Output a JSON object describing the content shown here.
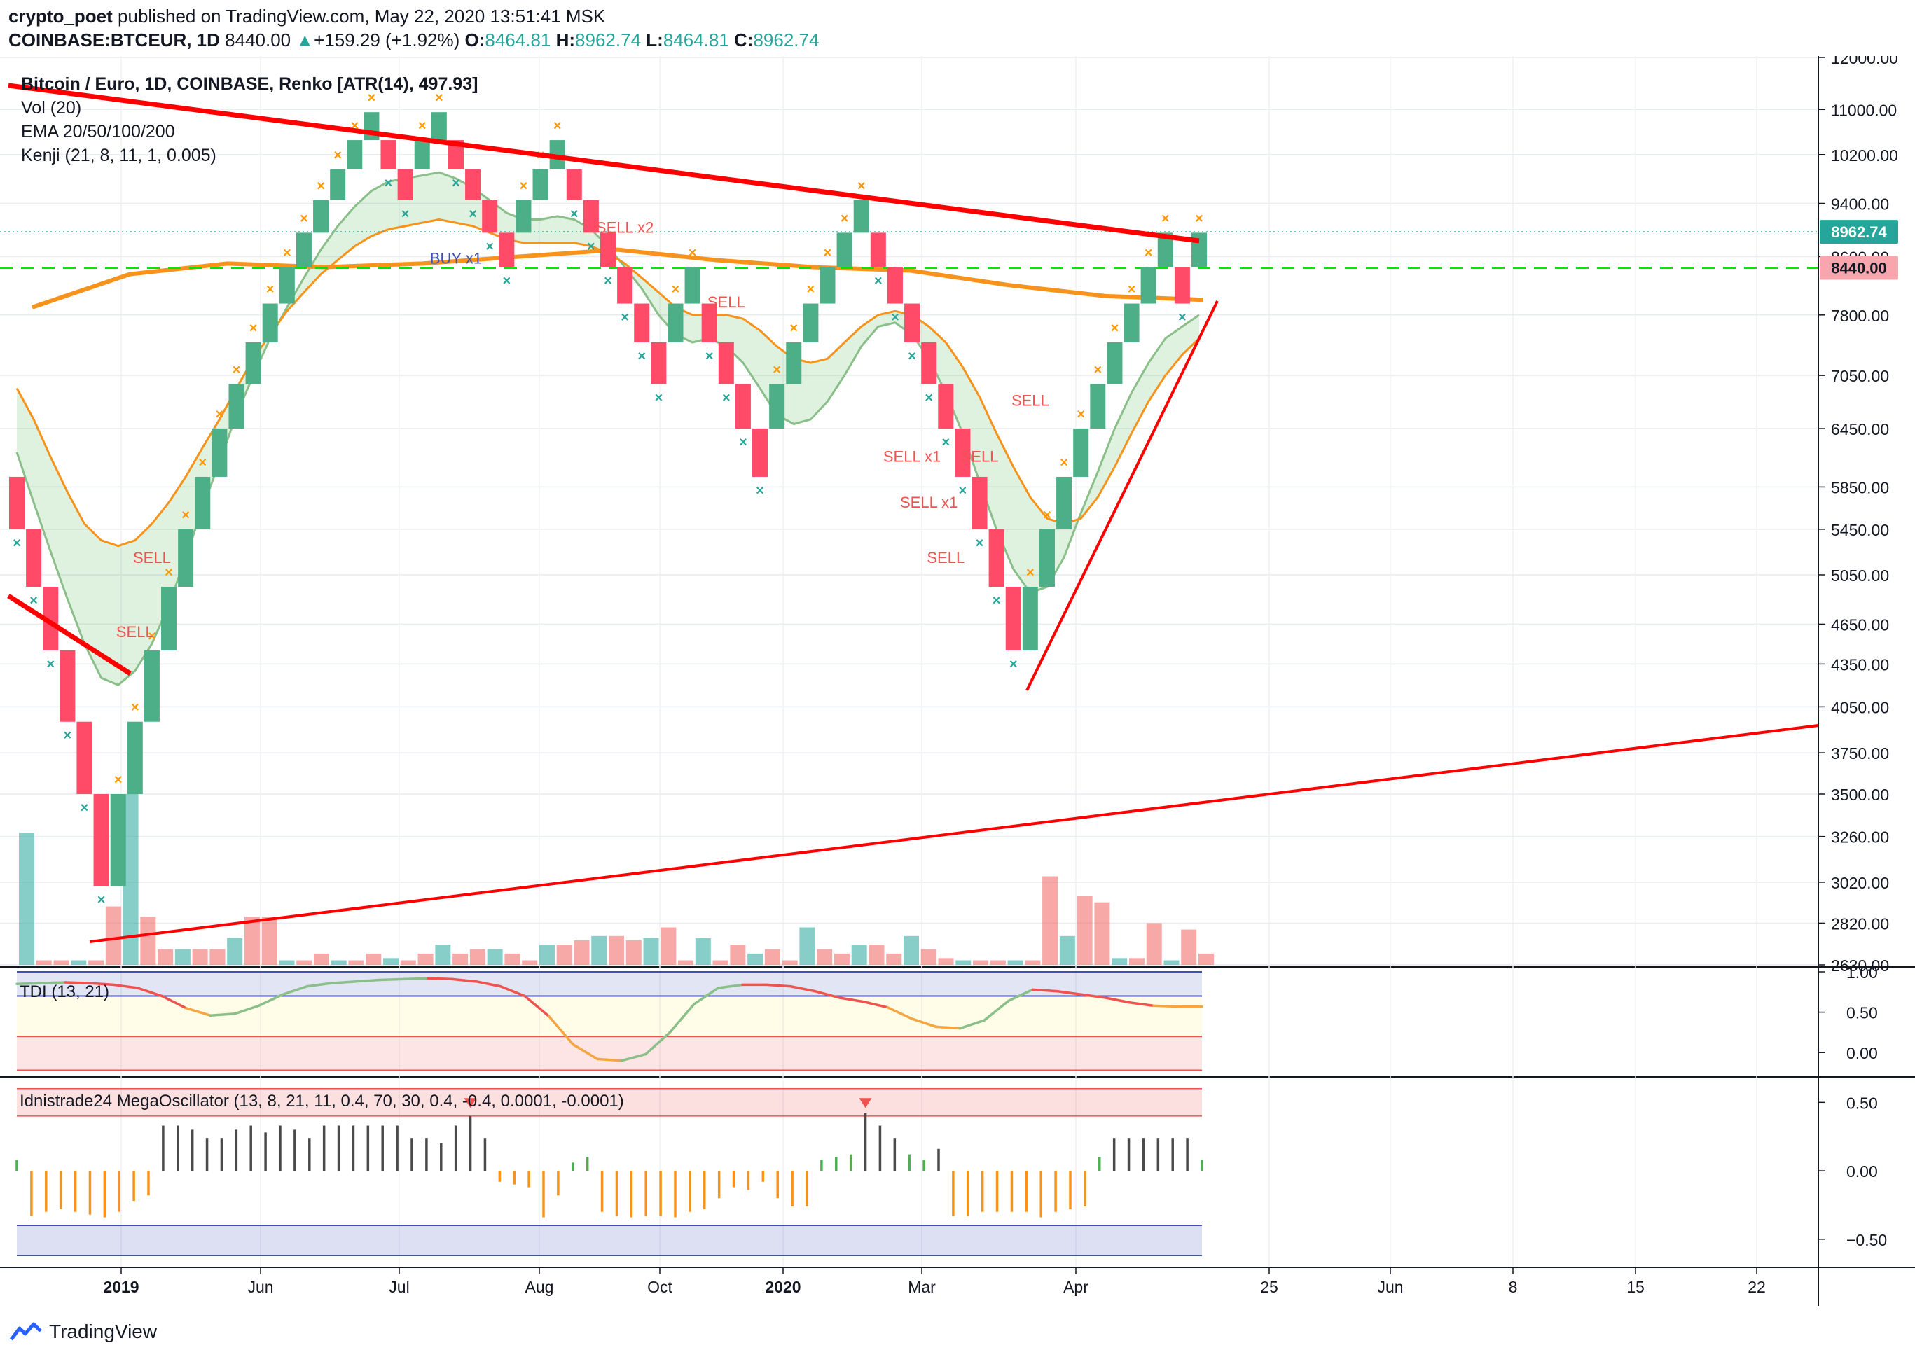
{
  "header": {
    "author": "crypto_poet",
    "published": "published on TradingView.com, May 22, 2020 13:51:41 MSK",
    "symbol": "COINBASE:BTCEUR, 1D",
    "last": "8440.00",
    "change": "+159.29 (+1.92%)",
    "o_label": "O:",
    "o_value": "8464.81",
    "h_label": "H:",
    "h_value": "8962.74",
    "l_label": "L:",
    "l_value": "8464.81",
    "c_label": "C:",
    "c_value": "8962.74"
  },
  "legend": {
    "line1": "Bitcoin / Euro, 1D, COINBASE, Renko [ATR(14), 497.93]",
    "line2": "Vol (20)",
    "line3": "EMA 20/50/100/200",
    "line4": "Kenji (21, 8, 11, 1, 0.005)"
  },
  "footer": {
    "brand": "TradingView"
  },
  "colors": {
    "up": "#26a69a",
    "up_fill": "#4caf87",
    "down": "#ef5350",
    "trend_red": "#ff0000",
    "ema_orange": "#f7931a",
    "level_green": "#00e600",
    "marker_up": "#ff9800",
    "marker_down": "#26a69a"
  },
  "chart_data": [
    {
      "type": "candlestick",
      "title": "Bitcoin / Euro, 1D, COINBASE, Renko [ATR(14), 497.93]",
      "y_scale": "log",
      "ylim": [
        2630,
        12000
      ],
      "y_ticks": [
        12000,
        11000,
        10200,
        9400,
        8600,
        7800,
        7050,
        6450,
        5850,
        5450,
        5050,
        4650,
        4350,
        4050,
        3750,
        3500,
        3260,
        3020,
        2820,
        2630
      ],
      "y_tick_labels": [
        "12000.00",
        "11000.00",
        "10200.00",
        "9400.00",
        "8600.00",
        "7800.00",
        "7050.00",
        "6450.00",
        "5850.00",
        "5450.00",
        "5050.00",
        "4650.00",
        "4350.00",
        "4050.00",
        "3750.00",
        "3500.00",
        "3260.00",
        "3020.00",
        "2820.00",
        "2630.00"
      ],
      "x_labels": [
        "2019",
        "Jun",
        "Jul",
        "Aug",
        "Oct",
        "2020",
        "Mar",
        "Apr",
        "25",
        "Jun",
        "8",
        "15",
        "22"
      ],
      "x_label_bold": [
        true,
        false,
        false,
        false,
        false,
        true,
        false,
        false,
        false,
        false,
        false,
        false,
        false
      ],
      "price_badges": [
        {
          "label": "8962.74",
          "value": 8962.74,
          "color": "#26a69a"
        },
        {
          "label": "8440.00",
          "value": 8440.0,
          "color": "#ef5350"
        }
      ],
      "horizontal_level": 8440,
      "bricks": [
        {
          "o": 5950,
          "c": 5450,
          "d": -1
        },
        {
          "o": 5450,
          "c": 4950,
          "d": -1
        },
        {
          "o": 4950,
          "c": 4450,
          "d": -1
        },
        {
          "o": 4450,
          "c": 3950,
          "d": -1
        },
        {
          "o": 3950,
          "c": 3500,
          "d": -1
        },
        {
          "o": 3500,
          "c": 3000,
          "d": -1
        },
        {
          "o": 3000,
          "c": 3500,
          "d": 1
        },
        {
          "o": 3500,
          "c": 3950,
          "d": 1
        },
        {
          "o": 3950,
          "c": 4450,
          "d": 1
        },
        {
          "o": 4450,
          "c": 4950,
          "d": 1
        },
        {
          "o": 4950,
          "c": 5450,
          "d": 1
        },
        {
          "o": 5450,
          "c": 5950,
          "d": 1
        },
        {
          "o": 5950,
          "c": 6450,
          "d": 1
        },
        {
          "o": 6450,
          "c": 6950,
          "d": 1
        },
        {
          "o": 6950,
          "c": 7450,
          "d": 1
        },
        {
          "o": 7450,
          "c": 7950,
          "d": 1
        },
        {
          "o": 7950,
          "c": 8450,
          "d": 1
        },
        {
          "o": 8450,
          "c": 8950,
          "d": 1
        },
        {
          "o": 8950,
          "c": 9450,
          "d": 1
        },
        {
          "o": 9450,
          "c": 9950,
          "d": 1
        },
        {
          "o": 9950,
          "c": 10450,
          "d": 1
        },
        {
          "o": 10450,
          "c": 10950,
          "d": 1
        },
        {
          "o": 10450,
          "c": 9950,
          "d": -1
        },
        {
          "o": 9950,
          "c": 9450,
          "d": -1
        },
        {
          "o": 9950,
          "c": 10450,
          "d": 1
        },
        {
          "o": 10450,
          "c": 10950,
          "d": 1
        },
        {
          "o": 10450,
          "c": 9950,
          "d": -1
        },
        {
          "o": 9950,
          "c": 9450,
          "d": -1
        },
        {
          "o": 9450,
          "c": 8950,
          "d": -1
        },
        {
          "o": 8950,
          "c": 8450,
          "d": -1
        },
        {
          "o": 8950,
          "c": 9450,
          "d": 1
        },
        {
          "o": 9450,
          "c": 9950,
          "d": 1
        },
        {
          "o": 9950,
          "c": 10450,
          "d": 1
        },
        {
          "o": 9950,
          "c": 9450,
          "d": -1
        },
        {
          "o": 9450,
          "c": 8950,
          "d": -1
        },
        {
          "o": 8950,
          "c": 8450,
          "d": -1
        },
        {
          "o": 8450,
          "c": 7950,
          "d": -1
        },
        {
          "o": 7950,
          "c": 7450,
          "d": -1
        },
        {
          "o": 7450,
          "c": 6950,
          "d": -1
        },
        {
          "o": 7450,
          "c": 7950,
          "d": 1
        },
        {
          "o": 7950,
          "c": 8450,
          "d": 1
        },
        {
          "o": 7950,
          "c": 7450,
          "d": -1
        },
        {
          "o": 7450,
          "c": 6950,
          "d": -1
        },
        {
          "o": 6950,
          "c": 6450,
          "d": -1
        },
        {
          "o": 6450,
          "c": 5950,
          "d": -1
        },
        {
          "o": 6450,
          "c": 6950,
          "d": 1
        },
        {
          "o": 6950,
          "c": 7450,
          "d": 1
        },
        {
          "o": 7450,
          "c": 7950,
          "d": 1
        },
        {
          "o": 7950,
          "c": 8450,
          "d": 1
        },
        {
          "o": 8450,
          "c": 8950,
          "d": 1
        },
        {
          "o": 8950,
          "c": 9450,
          "d": 1
        },
        {
          "o": 8950,
          "c": 8450,
          "d": -1
        },
        {
          "o": 8450,
          "c": 7950,
          "d": -1
        },
        {
          "o": 7950,
          "c": 7450,
          "d": -1
        },
        {
          "o": 7450,
          "c": 6950,
          "d": -1
        },
        {
          "o": 6950,
          "c": 6450,
          "d": -1
        },
        {
          "o": 6450,
          "c": 5950,
          "d": -1
        },
        {
          "o": 5950,
          "c": 5450,
          "d": -1
        },
        {
          "o": 5450,
          "c": 4950,
          "d": -1
        },
        {
          "o": 4950,
          "c": 4450,
          "d": -1
        },
        {
          "o": 4450,
          "c": 4950,
          "d": 1
        },
        {
          "o": 4950,
          "c": 5450,
          "d": 1
        },
        {
          "o": 5450,
          "c": 5950,
          "d": 1
        },
        {
          "o": 5950,
          "c": 6450,
          "d": 1
        },
        {
          "o": 6450,
          "c": 6950,
          "d": 1
        },
        {
          "o": 6950,
          "c": 7450,
          "d": 1
        },
        {
          "o": 7450,
          "c": 7950,
          "d": 1
        },
        {
          "o": 7950,
          "c": 8450,
          "d": 1
        },
        {
          "o": 8450,
          "c": 8950,
          "d": 1
        },
        {
          "o": 8450,
          "c": 7950,
          "d": -1
        },
        {
          "o": 8450,
          "c": 8950,
          "d": 1
        }
      ],
      "signals": [
        {
          "label": "SELL",
          "brick": 8,
          "price": 5150
        },
        {
          "label": "SELL",
          "brick": 7,
          "price": 4550
        },
        {
          "label": "BUY x1",
          "brick": 26,
          "price": 8500
        },
        {
          "label": "SELL x2",
          "brick": 36,
          "price": 8950
        },
        {
          "label": "SELL",
          "brick": 42,
          "price": 7900
        },
        {
          "label": "SELL x1",
          "brick": 53,
          "price": 6100
        },
        {
          "label": "SELL x1",
          "brick": 54,
          "price": 5650
        },
        {
          "label": "SELL",
          "brick": 55,
          "price": 5150
        },
        {
          "label": "SELL",
          "brick": 57,
          "price": 6100
        },
        {
          "label": "SELL",
          "brick": 60,
          "price": 6700
        }
      ],
      "ema_fast": [
        6200,
        5700,
        5250,
        4850,
        4500,
        4250,
        4200,
        4300,
        4500,
        4800,
        5200,
        5650,
        6100,
        6600,
        7050,
        7500,
        7900,
        8300,
        8700,
        9050,
        9350,
        9600,
        9750,
        9800,
        9850,
        9900,
        9800,
        9650,
        9450,
        9250,
        9150,
        9150,
        9200,
        9150,
        9000,
        8750,
        8450,
        8150,
        7800,
        7550,
        7450,
        7500,
        7400,
        7200,
        6900,
        6600,
        6500,
        6550,
        6750,
        7050,
        7400,
        7650,
        7700,
        7550,
        7250,
        6850,
        6400,
        5900,
        5450,
        5100,
        4900,
        4950,
        5200,
        5600,
        6000,
        6450,
        6850,
        7200,
        7500,
        7650,
        7800
      ],
      "ema_slow": [
        6900,
        6550,
        6150,
        5800,
        5500,
        5350,
        5300,
        5350,
        5500,
        5700,
        5950,
        6250,
        6550,
        6900,
        7250,
        7550,
        7850,
        8100,
        8350,
        8550,
        8750,
        8900,
        9000,
        9050,
        9100,
        9150,
        9100,
        9050,
        8950,
        8850,
        8800,
        8800,
        8800,
        8800,
        8750,
        8650,
        8500,
        8300,
        8100,
        7900,
        7800,
        7800,
        7800,
        7750,
        7600,
        7400,
        7250,
        7200,
        7250,
        7450,
        7650,
        7800,
        7850,
        7800,
        7650,
        7450,
        7150,
        6800,
        6400,
        6050,
        5750,
        5550,
        5500,
        5550,
        5750,
        6050,
        6400,
        6750,
        7050,
        7300,
        7500
      ],
      "ema_long": [
        7900,
        8350,
        8500,
        8450,
        8500,
        8600,
        8700,
        8550,
        8450,
        8400,
        8200,
        8050,
        8000
      ],
      "volume": [
        3280,
        2650,
        2650,
        2650,
        2650,
        2900,
        3500,
        2850,
        2700,
        2700,
        2700,
        2700,
        2750,
        2850,
        2850,
        2650,
        2650,
        2680,
        2650,
        2650,
        2680,
        2660,
        2650,
        2680,
        2720,
        2680,
        2700,
        2700,
        2680,
        2650,
        2720,
        2720,
        2740,
        2760,
        2760,
        2740,
        2750,
        2800,
        2650,
        2750,
        2650,
        2720,
        2680,
        2700,
        2650,
        2800,
        2700,
        2680,
        2720,
        2720,
        2680,
        2760,
        2700,
        2660,
        2650,
        2650,
        2650,
        2650,
        2650,
        3050,
        2760,
        2950,
        2920,
        2660,
        2660,
        2820,
        2650,
        2790,
        2680
      ],
      "volume_ticks": [
        2630,
        2820
      ]
    },
    {
      "type": "line",
      "title": "TDI (13, 21)",
      "ylim": [
        -0.25,
        1.0
      ],
      "y_ticks": [
        1.0,
        0.5,
        0.0
      ],
      "y_tick_labels": [
        "1.00",
        "0.50",
        "0.00"
      ],
      "values": [
        0.85,
        0.86,
        0.87,
        0.86,
        0.84,
        0.8,
        0.7,
        0.55,
        0.46,
        0.48,
        0.58,
        0.72,
        0.82,
        0.86,
        0.88,
        0.9,
        0.91,
        0.92,
        0.91,
        0.88,
        0.82,
        0.7,
        0.45,
        0.1,
        -0.08,
        -0.1,
        -0.02,
        0.25,
        0.6,
        0.8,
        0.84,
        0.84,
        0.82,
        0.76,
        0.68,
        0.63,
        0.56,
        0.42,
        0.32,
        0.3,
        0.4,
        0.64,
        0.78,
        0.76,
        0.72,
        0.68,
        0.62,
        0.58,
        0.57,
        0.57
      ]
    },
    {
      "type": "bar",
      "title": "Idnistrade24 MegaOscillator (13, 8, 21, 11, 0.4, 70, 30, 0.4, -0.4, 0.0001, -0.0001)",
      "ylim": [
        -0.68,
        0.65
      ],
      "y_ticks": [
        0.5,
        0.0,
        -0.5
      ],
      "y_tick_labels": [
        "0.50",
        "0.00",
        "−0.50"
      ],
      "values": [
        0.08,
        -0.33,
        -0.3,
        -0.28,
        -0.3,
        -0.32,
        -0.34,
        -0.3,
        -0.22,
        -0.18,
        0.33,
        0.33,
        0.3,
        0.24,
        0.24,
        0.3,
        0.33,
        0.28,
        0.33,
        0.3,
        0.24,
        0.33,
        0.33,
        0.33,
        0.33,
        0.33,
        0.33,
        0.24,
        0.24,
        0.2,
        0.33,
        0.4,
        0.24,
        -0.08,
        -0.1,
        -0.12,
        -0.34,
        -0.18,
        0.06,
        0.1,
        -0.3,
        -0.33,
        -0.34,
        -0.33,
        -0.33,
        -0.34,
        -0.3,
        -0.28,
        -0.2,
        -0.12,
        -0.14,
        -0.08,
        -0.2,
        -0.26,
        -0.26,
        0.08,
        0.1,
        0.12,
        0.42,
        0.33,
        0.24,
        0.12,
        0.08,
        0.16,
        -0.33,
        -0.33,
        -0.3,
        -0.3,
        -0.3,
        -0.3,
        -0.34,
        -0.3,
        -0.28,
        -0.26,
        0.1,
        0.24,
        0.24,
        0.24,
        0.24,
        0.24,
        0.24,
        0.08
      ],
      "arrows": [
        31,
        58
      ]
    }
  ]
}
